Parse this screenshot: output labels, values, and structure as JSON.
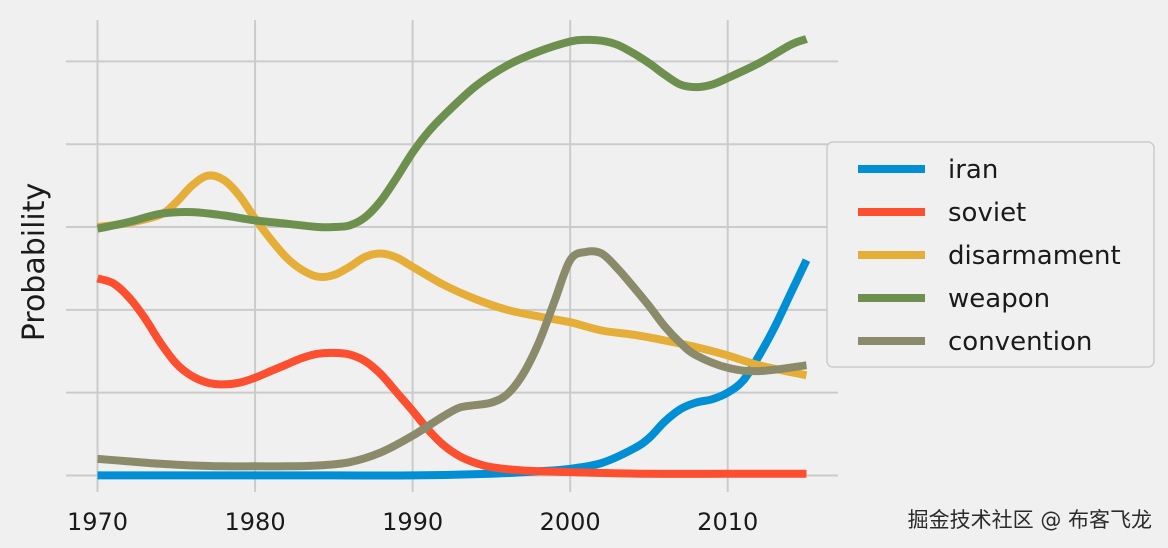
{
  "chart_data": {
    "type": "line",
    "title": "",
    "xlabel": "",
    "ylabel": "Probability",
    "xlim": [
      1968,
      2017
    ],
    "ylim": [
      -0.02,
      0.55
    ],
    "x_ticks": [
      1970,
      1980,
      1990,
      2000,
      2010
    ],
    "y_ticks": [
      0,
      0.1,
      0.2,
      0.3,
      0.4,
      0.5
    ],
    "y_tick_labels_shown": false,
    "grid": true,
    "legend_position": "right",
    "series": [
      {
        "name": "iran",
        "color": "#008fd5",
        "x": [
          1970,
          1975,
          1980,
          1985,
          1990,
          1995,
          1998,
          2000,
          2002,
          2004,
          2005,
          2006,
          2007,
          2008,
          2009,
          2010,
          2011,
          2012,
          2013,
          2014,
          2015
        ],
        "y": [
          0.0,
          0.0,
          0.0,
          0.0,
          0.0,
          0.002,
          0.005,
          0.008,
          0.015,
          0.032,
          0.045,
          0.065,
          0.08,
          0.088,
          0.092,
          0.1,
          0.115,
          0.145,
          0.18,
          0.22,
          0.26
        ]
      },
      {
        "name": "soviet",
        "color": "#fc4f30",
        "x": [
          1970,
          1971,
          1972,
          1973,
          1974,
          1975,
          1976,
          1977,
          1978,
          1979,
          1980,
          1981,
          1982,
          1983,
          1984,
          1985,
          1986,
          1987,
          1988,
          1989,
          1990,
          1991,
          1992,
          1993,
          1994,
          1995,
          1997,
          2000,
          2005,
          2010,
          2015
        ],
        "y": [
          0.238,
          0.232,
          0.215,
          0.19,
          0.16,
          0.135,
          0.12,
          0.112,
          0.11,
          0.112,
          0.118,
          0.126,
          0.134,
          0.142,
          0.147,
          0.148,
          0.146,
          0.138,
          0.122,
          0.1,
          0.078,
          0.055,
          0.036,
          0.023,
          0.015,
          0.01,
          0.006,
          0.004,
          0.002,
          0.002,
          0.002
        ]
      },
      {
        "name": "disarmament",
        "color": "#e5ae38",
        "x": [
          1970,
          1972,
          1974,
          1975,
          1976,
          1977,
          1978,
          1979,
          1980,
          1981,
          1982,
          1983,
          1984,
          1985,
          1986,
          1987,
          1988,
          1989,
          1990,
          1992,
          1994,
          1996,
          1998,
          2000,
          2002,
          2004,
          2006,
          2008,
          2010,
          2012,
          2015
        ],
        "y": [
          0.3,
          0.305,
          0.315,
          0.33,
          0.35,
          0.362,
          0.357,
          0.338,
          0.31,
          0.285,
          0.263,
          0.248,
          0.24,
          0.242,
          0.252,
          0.264,
          0.268,
          0.263,
          0.252,
          0.23,
          0.213,
          0.2,
          0.192,
          0.185,
          0.175,
          0.17,
          0.163,
          0.155,
          0.145,
          0.133,
          0.121
        ]
      },
      {
        "name": "weapon",
        "color": "#6d904f",
        "x": [
          1970,
          1972,
          1974,
          1976,
          1978,
          1980,
          1982,
          1984,
          1985,
          1986,
          1987,
          1988,
          1989,
          1990,
          1991,
          1992,
          1994,
          1996,
          1998,
          2000,
          2001,
          2002,
          2003,
          2004,
          2005,
          2006,
          2007,
          2008,
          2009,
          2010,
          2012,
          2014,
          2015
        ],
        "y": [
          0.298,
          0.306,
          0.316,
          0.318,
          0.314,
          0.308,
          0.304,
          0.3,
          0.3,
          0.302,
          0.312,
          0.332,
          0.36,
          0.39,
          0.415,
          0.435,
          0.47,
          0.495,
          0.512,
          0.524,
          0.526,
          0.525,
          0.52,
          0.51,
          0.498,
          0.484,
          0.472,
          0.469,
          0.472,
          0.48,
          0.498,
          0.52,
          0.527
        ]
      },
      {
        "name": "convention",
        "color": "#8b8b6b",
        "x": [
          1970,
          1972,
          1974,
          1976,
          1978,
          1980,
          1982,
          1984,
          1986,
          1988,
          1990,
          1992,
          1993,
          1994,
          1995,
          1996,
          1997,
          1998,
          1999,
          2000,
          2001,
          2002,
          2003,
          2004,
          2005,
          2006,
          2007,
          2008,
          2010,
          2012,
          2015
        ],
        "y": [
          0.02,
          0.017,
          0.014,
          0.012,
          0.011,
          0.011,
          0.011,
          0.012,
          0.016,
          0.028,
          0.048,
          0.072,
          0.082,
          0.085,
          0.088,
          0.098,
          0.122,
          0.16,
          0.21,
          0.26,
          0.27,
          0.268,
          0.25,
          0.228,
          0.205,
          0.18,
          0.16,
          0.145,
          0.13,
          0.126,
          0.133
        ]
      }
    ]
  },
  "watermark": {
    "text": "掘金技术社区 @ 布客飞龙"
  }
}
